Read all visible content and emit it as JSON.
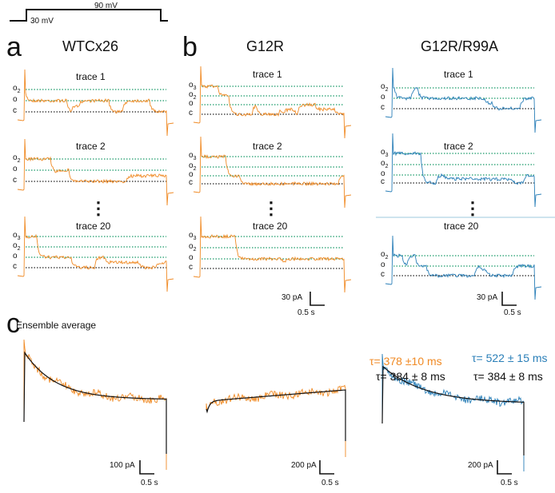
{
  "protocol": {
    "high_label": "90 mV",
    "low_label": "30 mV"
  },
  "colors": {
    "orange": "#f08a24",
    "blue": "#2a7fb8",
    "green_level": "#1a9a6a",
    "closed_level": "#222222"
  },
  "panels": [
    {
      "letter": "a",
      "title": "WTCx26",
      "color": "orange",
      "traces": [
        {
          "label": "trace 1",
          "levels": [
            "O2",
            "O",
            "C"
          ]
        },
        {
          "label": "trace 2",
          "levels": [
            "O2",
            "O",
            "C"
          ]
        },
        {
          "label": "trace 20",
          "levels": [
            "O3",
            "O2",
            "O",
            "C"
          ]
        }
      ]
    },
    {
      "letter": "b",
      "title": "G12R",
      "color": "orange",
      "traces": [
        {
          "label": "trace 1",
          "levels": [
            "O3",
            "O2",
            "O",
            "C"
          ]
        },
        {
          "label": "trace 2",
          "levels": [
            "O3",
            "O2",
            "O",
            "C"
          ]
        },
        {
          "label": "trace 20",
          "levels": [
            "O3",
            "O2",
            "O",
            "C"
          ]
        }
      ],
      "scale": {
        "current": "30 pA",
        "time": "0.5 s"
      }
    },
    {
      "letter": "",
      "title": "G12R/R99A",
      "color": "blue",
      "traces": [
        {
          "label": "trace 1",
          "levels": [
            "O2",
            "O",
            "C"
          ]
        },
        {
          "label": "trace 2",
          "levels": [
            "O3",
            "O2",
            "O",
            "C"
          ]
        },
        {
          "label": "trace 20",
          "levels": [
            "O2",
            "O",
            "C"
          ]
        }
      ],
      "scale": {
        "current": "30 pA",
        "time": "0.5 s"
      }
    }
  ],
  "ellipsis": "⋮",
  "ensemble": {
    "letter": "c",
    "title": "Ensemble average",
    "averages": [
      {
        "scale": {
          "current": "100 pA",
          "time": "0.5 s"
        }
      },
      {
        "scale": {
          "current": "200 pA",
          "time": "0.5 s"
        }
      },
      {
        "scale": {
          "current": "200 pA",
          "time": "0.5 s"
        }
      }
    ],
    "tau_wt_data": "τ= 378 ±10 ms",
    "tau_wt_fit": "τ= 384 ± 8 ms",
    "tau_r99a_data": "τ= 522 ± 15 ms",
    "tau_r99a_fit": "τ= 384 ± 8 ms"
  }
}
